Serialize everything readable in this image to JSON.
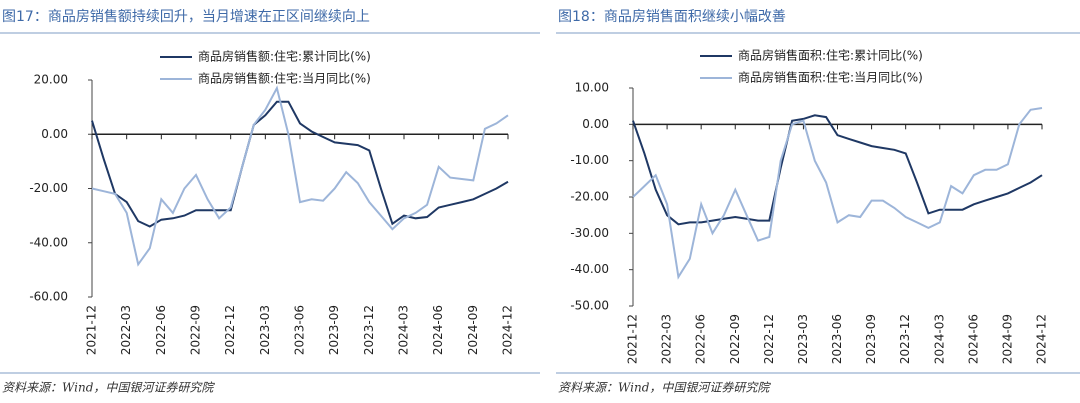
{
  "chart_data": [
    {
      "type": "line",
      "title": "图17：商品房销售额持续回升，当月增速在正区间继续向上",
      "source": "资料来源：Wind，中国银河证券研究院",
      "categories": [
        "2021-12",
        null,
        null,
        "2022-03",
        null,
        null,
        "2022-06",
        null,
        null,
        "2022-09",
        null,
        null,
        "2022-12",
        null,
        null,
        "2023-03",
        null,
        null,
        "2023-06",
        null,
        null,
        "2023-09",
        null,
        null,
        "2023-12",
        null,
        null,
        "2024-03",
        null,
        null,
        "2024-06",
        null,
        null,
        "2024-09",
        null,
        null,
        "2024-12"
      ],
      "series": [
        {
          "name": "商品房销售额:住宅:累计同比(%)",
          "color": "#1f3864",
          "values": [
            5,
            -9,
            -22,
            -25,
            -32,
            -34,
            -31.5,
            -31,
            -30,
            -28,
            -28,
            -28,
            -28,
            -12,
            3.5,
            7,
            12,
            12,
            4,
            1,
            -1,
            -3,
            -3.5,
            -4,
            -6,
            -20,
            -33,
            -30,
            -31,
            -30.5,
            -27,
            -26,
            -25,
            -24,
            -22,
            -20,
            -17.5
          ]
        },
        {
          "name": "商品房销售额:住宅:当月同比(%)",
          "color": "#9db5d9",
          "values": [
            -20,
            -21,
            -22,
            -29,
            -48,
            -42,
            -24,
            -29,
            -20,
            -15,
            -24,
            -31,
            -27,
            -12,
            3.5,
            9,
            17,
            0,
            -25,
            -24,
            -24.5,
            -20,
            -14,
            -18,
            -25,
            -30,
            -35,
            -31,
            -29,
            -26,
            -12,
            -16,
            -16.5,
            -17,
            2,
            4,
            7
          ]
        }
      ],
      "ylim": [
        -60,
        20
      ],
      "yticks": [
        {
          "value": 20,
          "label": "20.00"
        },
        {
          "value": 0,
          "label": "0.00"
        },
        {
          "value": -20,
          "label": "-20.00"
        },
        {
          "value": -40,
          "label": "-40.00"
        },
        {
          "value": -60,
          "label": "-60.00"
        }
      ]
    },
    {
      "type": "line",
      "title": "图18：商品房销售面积继续小幅改善",
      "source": "资料来源：Wind，中国银河证券研究院",
      "categories": [
        "2021-12",
        null,
        null,
        "2022-03",
        null,
        null,
        "2022-06",
        null,
        null,
        "2022-09",
        null,
        null,
        "2022-12",
        null,
        null,
        "2023-03",
        null,
        null,
        "2023-06",
        null,
        null,
        "2023-09",
        null,
        null,
        "2023-12",
        null,
        null,
        "2024-03",
        null,
        null,
        "2024-06",
        null,
        null,
        "2024-09",
        null,
        null,
        "2024-12"
      ],
      "series": [
        {
          "name": "商品房销售面积:住宅:累计同比(%)",
          "color": "#1f3864",
          "values": [
            1,
            -8,
            -18,
            -25,
            -27.5,
            -27,
            -27,
            -26.5,
            -26,
            -25.5,
            -26,
            -26.5,
            -26.5,
            -12,
            1,
            1.5,
            2.5,
            2,
            -3,
            -4,
            -5,
            -6,
            -6.5,
            -7,
            -8,
            -16,
            -24.5,
            -23.5,
            -23.5,
            -23.5,
            -22,
            -21,
            -20,
            -19,
            -17.5,
            -16,
            -14
          ]
        },
        {
          "name": "商品房销售面积:住宅:当月同比(%)",
          "color": "#9db5d9",
          "values": [
            -20,
            -17,
            -14,
            -22,
            -42,
            -37,
            -22,
            -30,
            -25,
            -18,
            -25,
            -32,
            -31,
            -10,
            0,
            1,
            -10,
            -16,
            -27,
            -25,
            -25.5,
            -21,
            -21,
            -23,
            -25.5,
            -27,
            -28.5,
            -27,
            -17,
            -19,
            -14,
            -12.5,
            -12.5,
            -11,
            0,
            4,
            4.5
          ]
        }
      ],
      "ylim": [
        -50,
        10
      ],
      "yticks": [
        {
          "value": 10,
          "label": "10.00"
        },
        {
          "value": 0,
          "label": "0.00"
        },
        {
          "value": -10,
          "label": "-10.00"
        },
        {
          "value": -20,
          "label": "-20.00"
        },
        {
          "value": -30,
          "label": "-30.00"
        },
        {
          "value": -40,
          "label": "-40.00"
        },
        {
          "value": -50,
          "label": "-50.00"
        }
      ]
    }
  ]
}
